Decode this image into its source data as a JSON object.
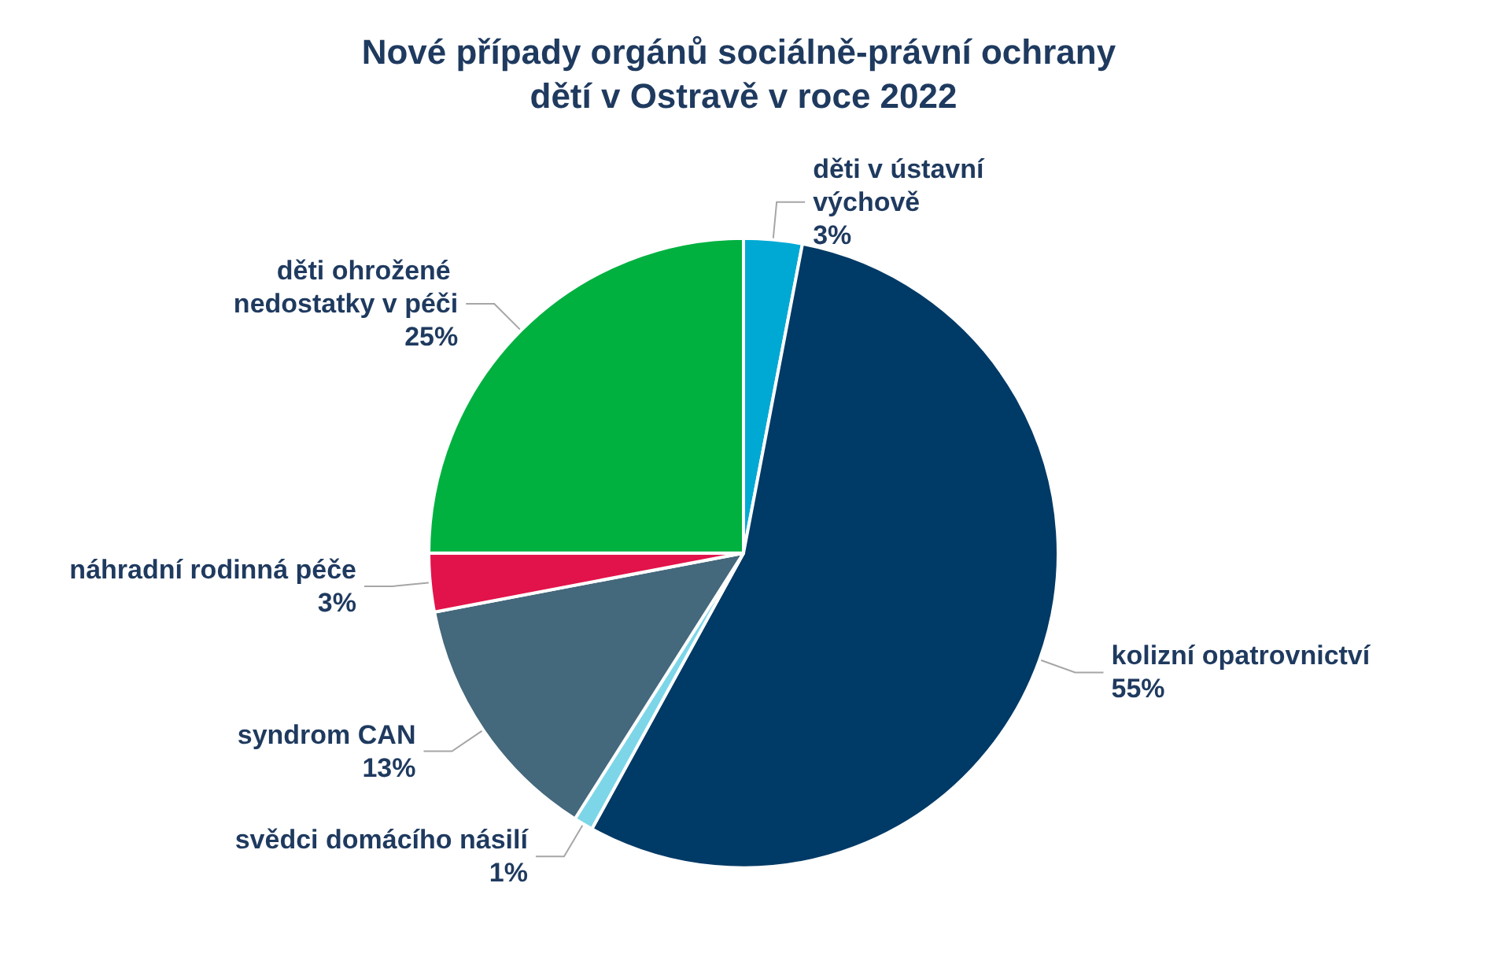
{
  "chart_data": {
    "type": "pie",
    "title": "Nové případy orgánů sociálně-právní ochrany dětí v Ostravě v roce 2022",
    "categories": [
      "děti v ústavní výchově",
      "kolizní opatrovnictví",
      "svědci domácího násilí",
      "syndrom CAN",
      "náhradní rodinná péče",
      "děti ohrožené nedostatky v péči"
    ],
    "values": [
      3,
      55,
      1,
      13,
      3,
      25
    ],
    "value_labels": [
      "3%",
      "55%",
      "1%",
      "13%",
      "3%",
      "25%"
    ],
    "colors": [
      "#00a9d4",
      "#003a66",
      "#7dd6e8",
      "#44687c",
      "#e2134a",
      "#00b140"
    ],
    "legend": false
  }
}
